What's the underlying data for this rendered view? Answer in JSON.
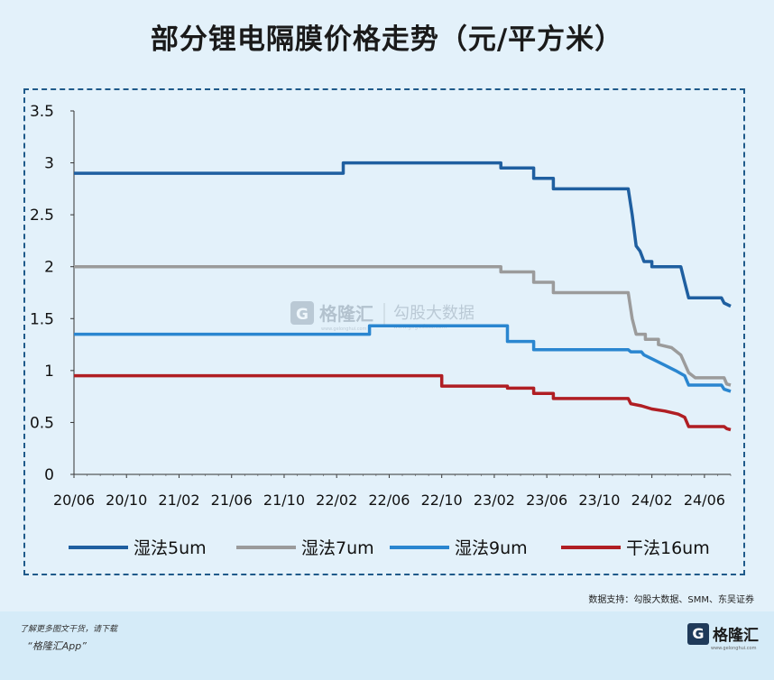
{
  "title": "部分锂电隔膜价格走势（元/平方米）",
  "source": "数据支持：勾股大数据、SMM、东吴证券",
  "watermark": {
    "brand": "格隆汇",
    "brand_url": "www.gelonghui.com",
    "partner": "勾股大数据",
    "partner_url": "www.gogudata.com"
  },
  "footer": {
    "line1": "了解更多图文干货，请下载",
    "line2": "“格隆汇App”",
    "brand": "格隆汇",
    "brand_mark": "G",
    "brand_url": "www.gelonghui.com"
  },
  "chart_data": {
    "type": "line",
    "title": "部分锂电隔膜价格走势（元/平方米）",
    "x_range_months": [
      0,
      50
    ],
    "x_ticks": [
      {
        "label": "20/06",
        "m": 0
      },
      {
        "label": "20/10",
        "m": 4
      },
      {
        "label": "21/02",
        "m": 8
      },
      {
        "label": "21/06",
        "m": 12
      },
      {
        "label": "21/10",
        "m": 16
      },
      {
        "label": "22/02",
        "m": 20
      },
      {
        "label": "22/06",
        "m": 24
      },
      {
        "label": "22/10",
        "m": 28
      },
      {
        "label": "23/02",
        "m": 32
      },
      {
        "label": "23/06",
        "m": 36
      },
      {
        "label": "23/10",
        "m": 40
      },
      {
        "label": "24/02",
        "m": 44
      },
      {
        "label": "24/06",
        "m": 48
      }
    ],
    "ylim": [
      0,
      3.5
    ],
    "y_ticks": [
      "0",
      "0.5",
      "1",
      "1.5",
      "2",
      "2.5",
      "3",
      "3.5"
    ],
    "series": [
      {
        "name": "湿法5um",
        "color": "#1f5fa0",
        "points": [
          [
            0,
            2.9
          ],
          [
            20.5,
            2.9
          ],
          [
            20.5,
            3.0
          ],
          [
            32.5,
            3.0
          ],
          [
            32.5,
            2.95
          ],
          [
            35,
            2.95
          ],
          [
            35,
            2.85
          ],
          [
            36.5,
            2.85
          ],
          [
            36.5,
            2.75
          ],
          [
            42.2,
            2.75
          ],
          [
            42.5,
            2.5
          ],
          [
            42.8,
            2.2
          ],
          [
            43.1,
            2.15
          ],
          [
            43.4,
            2.05
          ],
          [
            44,
            2.05
          ],
          [
            44,
            2.0
          ],
          [
            46.2,
            2.0
          ],
          [
            46.5,
            1.85
          ],
          [
            46.8,
            1.7
          ],
          [
            49.3,
            1.7
          ],
          [
            49.5,
            1.65
          ],
          [
            50,
            1.62
          ]
        ]
      },
      {
        "name": "湿法7um",
        "color": "#9b9b9b",
        "points": [
          [
            0,
            2.0
          ],
          [
            32.5,
            2.0
          ],
          [
            32.5,
            1.95
          ],
          [
            35,
            1.95
          ],
          [
            35,
            1.85
          ],
          [
            36.5,
            1.85
          ],
          [
            36.5,
            1.75
          ],
          [
            42.2,
            1.75
          ],
          [
            42.5,
            1.5
          ],
          [
            42.8,
            1.35
          ],
          [
            43.5,
            1.35
          ],
          [
            43.5,
            1.3
          ],
          [
            44.5,
            1.3
          ],
          [
            44.5,
            1.25
          ],
          [
            45.5,
            1.22
          ],
          [
            46.2,
            1.15
          ],
          [
            46.8,
            0.98
          ],
          [
            47.3,
            0.93
          ],
          [
            49.5,
            0.93
          ],
          [
            49.7,
            0.87
          ],
          [
            50,
            0.86
          ]
        ]
      },
      {
        "name": "湿法9um",
        "color": "#2a86d0",
        "points": [
          [
            0,
            1.35
          ],
          [
            22.5,
            1.35
          ],
          [
            22.5,
            1.43
          ],
          [
            33,
            1.43
          ],
          [
            33,
            1.28
          ],
          [
            35,
            1.28
          ],
          [
            35,
            1.2
          ],
          [
            42.2,
            1.2
          ],
          [
            42.4,
            1.18
          ],
          [
            43.2,
            1.18
          ],
          [
            43.4,
            1.15
          ],
          [
            44.2,
            1.1
          ],
          [
            45,
            1.05
          ],
          [
            45.8,
            1.0
          ],
          [
            46.5,
            0.95
          ],
          [
            46.8,
            0.86
          ],
          [
            49.3,
            0.86
          ],
          [
            49.5,
            0.82
          ],
          [
            50,
            0.8
          ]
        ]
      },
      {
        "name": "干法16um",
        "color": "#b01e23",
        "points": [
          [
            0,
            0.95
          ],
          [
            28,
            0.95
          ],
          [
            28,
            0.85
          ],
          [
            33,
            0.85
          ],
          [
            33,
            0.83
          ],
          [
            35,
            0.83
          ],
          [
            35,
            0.78
          ],
          [
            36.5,
            0.78
          ],
          [
            36.5,
            0.73
          ],
          [
            42.2,
            0.73
          ],
          [
            42.4,
            0.68
          ],
          [
            43.2,
            0.66
          ],
          [
            44,
            0.63
          ],
          [
            45,
            0.61
          ],
          [
            46,
            0.58
          ],
          [
            46.5,
            0.55
          ],
          [
            46.8,
            0.46
          ],
          [
            49.5,
            0.46
          ],
          [
            49.7,
            0.44
          ],
          [
            50,
            0.43
          ]
        ]
      }
    ]
  }
}
